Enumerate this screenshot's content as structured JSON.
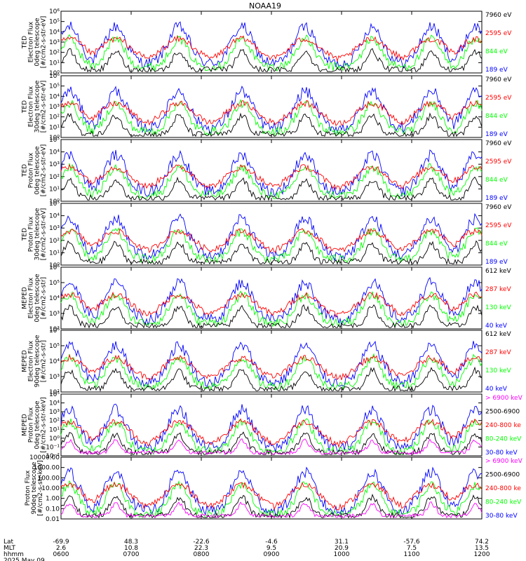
{
  "title": "NOAA19",
  "colors": {
    "black": "#000000",
    "blue": "#0000ff",
    "red": "#ff0000",
    "green": "#00ff00",
    "magenta": "#ff00ff"
  },
  "footer": {
    "row_labels": [
      "Lat",
      "MLT",
      "hhmm"
    ],
    "date": "2025 May 09",
    "lat": [
      "-69.9",
      "48.3",
      "-22.6",
      "-4.6",
      "31.1",
      "-57.6",
      "74.2"
    ],
    "mlt": [
      "2.6",
      "10.8",
      "22.3",
      "9.5",
      "20.9",
      "7.5",
      "13.5"
    ],
    "hhmm": [
      "0600",
      "0700",
      "0800",
      "0900",
      "1000",
      "1100",
      "1200"
    ]
  },
  "chart_data": [
    {
      "type": "line",
      "title": "",
      "ylabel": [
        "TED",
        "Electron Flux",
        "0deg telescope",
        "[#/cm2-s-str-eV]"
      ],
      "yscale": "log",
      "ylim": [
        1,
        1000000
      ],
      "ytick_labels": [
        "10⁰",
        "10¹",
        "10²",
        "10³",
        "10⁴",
        "10⁵",
        "10⁶"
      ],
      "legend": [
        {
          "label": "7960 eV",
          "color": "#000000"
        },
        {
          "label": "2595 eV",
          "color": "#ff0000"
        },
        {
          "label": "844 eV",
          "color": "#00ff00"
        },
        {
          "label": "189 eV",
          "color": "#0000ff"
        }
      ]
    },
    {
      "type": "line",
      "title": "",
      "ylabel": [
        "TED",
        "Electron Flux",
        "30deg telescope",
        "[#/cm2-s-str-eV]"
      ],
      "yscale": "log",
      "ylim": [
        1,
        1000000
      ],
      "ytick_labels": [
        "10⁰",
        "10¹",
        "10²",
        "10³",
        "10⁴",
        "10⁵",
        "10⁶"
      ],
      "legend": [
        {
          "label": "7960 eV",
          "color": "#000000"
        },
        {
          "label": "2595 eV",
          "color": "#ff0000"
        },
        {
          "label": "844 eV",
          "color": "#00ff00"
        },
        {
          "label": "189 eV",
          "color": "#0000ff"
        }
      ]
    },
    {
      "type": "line",
      "title": "",
      "ylabel": [
        "TED",
        "Proton Flux",
        "0deg telescope",
        "[#/cm2-s-str-eV]"
      ],
      "yscale": "log",
      "ylim": [
        1,
        100000
      ],
      "ytick_labels": [
        "10⁰",
        "10¹",
        "10²",
        "10³",
        "10⁴",
        "10⁵"
      ],
      "legend": [
        {
          "label": "7960 eV",
          "color": "#000000"
        },
        {
          "label": "2595 eV",
          "color": "#ff0000"
        },
        {
          "label": "844 eV",
          "color": "#00ff00"
        },
        {
          "label": "189 eV",
          "color": "#0000ff"
        }
      ]
    },
    {
      "type": "line",
      "title": "",
      "ylabel": [
        "TED",
        "Proton Flux",
        "30deg telescope",
        "[#/cm2-s-str-eV]"
      ],
      "yscale": "log",
      "ylim": [
        1,
        100000
      ],
      "ytick_labels": [
        "10⁰",
        "10¹",
        "10²",
        "10³",
        "10⁴",
        "10⁵"
      ],
      "legend": [
        {
          "label": "7960 eV",
          "color": "#000000"
        },
        {
          "label": "2595 eV",
          "color": "#ff0000"
        },
        {
          "label": "844 eV",
          "color": "#00ff00"
        },
        {
          "label": "189 eV",
          "color": "#0000ff"
        }
      ]
    },
    {
      "type": "line",
      "title": "",
      "ylabel": [
        "MEPED",
        "Electron Flux",
        "0deg telescope",
        "[#/cm2-s-str]"
      ],
      "yscale": "log",
      "ylim": [
        100,
        1000000
      ],
      "ytick_labels": [
        "10²",
        "10³",
        "10⁴",
        "10⁵",
        "10⁶"
      ],
      "legend": [
        {
          "label": "612 keV",
          "color": "#000000"
        },
        {
          "label": "287 keV",
          "color": "#ff0000"
        },
        {
          "label": "130 keV",
          "color": "#00ff00"
        },
        {
          "label": "40 keV",
          "color": "#0000ff"
        }
      ]
    },
    {
      "type": "line",
      "title": "",
      "ylabel": [
        "MEPED",
        "Electron Flux",
        "90deg telescope",
        "[#/cm2-s-str]"
      ],
      "yscale": "log",
      "ylim": [
        100,
        1000000
      ],
      "ytick_labels": [
        "10²",
        "10³",
        "10⁴",
        "10⁵",
        "10⁶"
      ],
      "legend": [
        {
          "label": "612 keV",
          "color": "#000000"
        },
        {
          "label": "287 keV",
          "color": "#ff0000"
        },
        {
          "label": "130 keV",
          "color": "#00ff00"
        },
        {
          "label": "40 keV",
          "color": "#0000ff"
        }
      ]
    },
    {
      "type": "line",
      "title": "",
      "ylabel": [
        "MEPED",
        "Proton Flux",
        "0deg telescope",
        "[#/cm2-s-str-keV]"
      ],
      "yscale": "log",
      "ylim": [
        0.01,
        100000
      ],
      "ytick_labels": [
        "10⁻²",
        "10⁻¹",
        "10⁰",
        "10¹",
        "10²",
        "10³",
        "10⁴",
        "10⁵"
      ],
      "legend": [
        {
          "label": "> 6900 keV",
          "color": "#ff00ff"
        },
        {
          "label": "2500-6900",
          "color": "#000000"
        },
        {
          "label": "240-800 ke",
          "color": "#ff0000"
        },
        {
          "label": "80-240 keV",
          "color": "#00ff00"
        },
        {
          "label": "30-80 keV",
          "color": "#0000ff"
        }
      ]
    },
    {
      "type": "line",
      "title": "",
      "ylabel": [
        "Proton Flux",
        "90deg telescope",
        "[#/cm2-s-str-keV]"
      ],
      "yscale": "log",
      "ylim": [
        0.01,
        10000
      ],
      "ytick_labels": [
        "0.01",
        "0.10",
        "1.00",
        "10.00",
        "100.00",
        "1000.00",
        "10000.00"
      ],
      "legend": [
        {
          "label": "> 6900 keV",
          "color": "#ff00ff"
        },
        {
          "label": "2500-6900",
          "color": "#000000"
        },
        {
          "label": "240-800 ke",
          "color": "#ff0000"
        },
        {
          "label": "80-240 keV",
          "color": "#00ff00"
        },
        {
          "label": "30-80 keV",
          "color": "#0000ff"
        }
      ]
    }
  ]
}
